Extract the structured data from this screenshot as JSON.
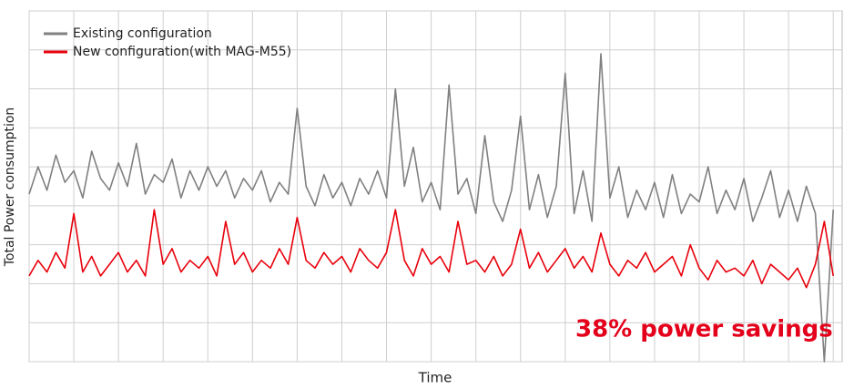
{
  "chart_data": {
    "type": "line",
    "x_label": "Time",
    "y_label": "Total Power consumption",
    "annotation": "38% power savings",
    "annotation_color": "#e4001b",
    "grid": true,
    "legend": "upper left",
    "xlim": [
      0,
      18.2
    ],
    "xticks": [
      0,
      1,
      2,
      3,
      4,
      5,
      6,
      7,
      8,
      9,
      10,
      11,
      12,
      13,
      14,
      15,
      16,
      17,
      18
    ],
    "ylim": [
      0,
      9
    ],
    "yticks": [
      0,
      1,
      2,
      3,
      4,
      5,
      6,
      7,
      8,
      9
    ],
    "x": [
      0,
      0.2,
      0.4,
      0.6,
      0.8,
      1,
      1.2,
      1.4,
      1.6,
      1.8,
      2,
      2.2,
      2.4,
      2.6,
      2.8,
      3,
      3.2,
      3.4,
      3.6,
      3.8,
      4,
      4.2,
      4.4,
      4.6,
      4.8,
      5,
      5.2,
      5.4,
      5.6,
      5.8,
      6,
      6.2,
      6.4,
      6.6,
      6.8,
      7,
      7.2,
      7.4,
      7.6,
      7.8,
      8,
      8.2,
      8.4,
      8.6,
      8.8,
      9,
      9.2,
      9.4,
      9.6,
      9.8,
      10,
      10.2,
      10.4,
      10.6,
      10.8,
      11,
      11.2,
      11.4,
      11.6,
      11.8,
      12,
      12.2,
      12.4,
      12.6,
      12.8,
      13,
      13.2,
      13.4,
      13.6,
      13.8,
      14,
      14.2,
      14.4,
      14.6,
      14.8,
      15,
      15.2,
      15.4,
      15.6,
      15.8,
      16,
      16.2,
      16.4,
      16.6,
      16.8,
      17,
      17.2,
      17.4,
      17.6,
      17.8,
      18
    ],
    "series": [
      {
        "name": "Existing configuration",
        "color": "#808080",
        "values": [
          4.3,
          5.0,
          4.4,
          5.3,
          4.6,
          4.9,
          4.2,
          5.4,
          4.7,
          4.4,
          5.1,
          4.5,
          5.6,
          4.3,
          4.8,
          4.6,
          5.2,
          4.2,
          4.9,
          4.4,
          5.0,
          4.5,
          4.9,
          4.2,
          4.7,
          4.4,
          4.9,
          4.1,
          4.6,
          4.3,
          6.5,
          4.5,
          4.0,
          4.8,
          4.2,
          4.6,
          4.0,
          4.7,
          4.3,
          4.9,
          4.2,
          7.0,
          4.5,
          5.5,
          4.1,
          4.6,
          3.9,
          7.1,
          4.3,
          4.7,
          3.8,
          5.8,
          4.1,
          3.6,
          4.4,
          6.3,
          3.9,
          4.8,
          3.7,
          4.5,
          7.4,
          3.8,
          4.9,
          3.6,
          7.9,
          4.2,
          5.0,
          3.7,
          4.4,
          3.9,
          4.6,
          3.7,
          4.8,
          3.8,
          4.3,
          4.1,
          5.0,
          3.8,
          4.4,
          3.9,
          4.7,
          3.6,
          4.2,
          4.9,
          3.7,
          4.4,
          3.6,
          4.5,
          3.8,
          0.0,
          3.9
        ]
      },
      {
        "name": "New configuration(with MAG-M55)",
        "color": "#e8000b",
        "values": [
          2.2,
          2.6,
          2.3,
          2.8,
          2.4,
          3.8,
          2.3,
          2.7,
          2.2,
          2.5,
          2.8,
          2.3,
          2.6,
          2.2,
          3.9,
          2.5,
          2.9,
          2.3,
          2.6,
          2.4,
          2.7,
          2.2,
          3.6,
          2.5,
          2.8,
          2.3,
          2.6,
          2.4,
          2.9,
          2.5,
          3.7,
          2.6,
          2.4,
          2.8,
          2.5,
          2.7,
          2.3,
          2.9,
          2.6,
          2.4,
          2.8,
          3.9,
          2.6,
          2.2,
          2.9,
          2.5,
          2.7,
          2.3,
          3.6,
          2.5,
          2.6,
          2.3,
          2.7,
          2.2,
          2.5,
          3.4,
          2.4,
          2.8,
          2.3,
          2.6,
          2.9,
          2.4,
          2.7,
          2.3,
          3.3,
          2.5,
          2.2,
          2.6,
          2.4,
          2.8,
          2.3,
          2.5,
          2.7,
          2.2,
          3.0,
          2.4,
          2.1,
          2.6,
          2.3,
          2.4,
          2.2,
          2.6,
          2.0,
          2.5,
          2.3,
          2.1,
          2.4,
          1.9,
          2.5,
          3.6,
          2.2
        ]
      }
    ]
  }
}
